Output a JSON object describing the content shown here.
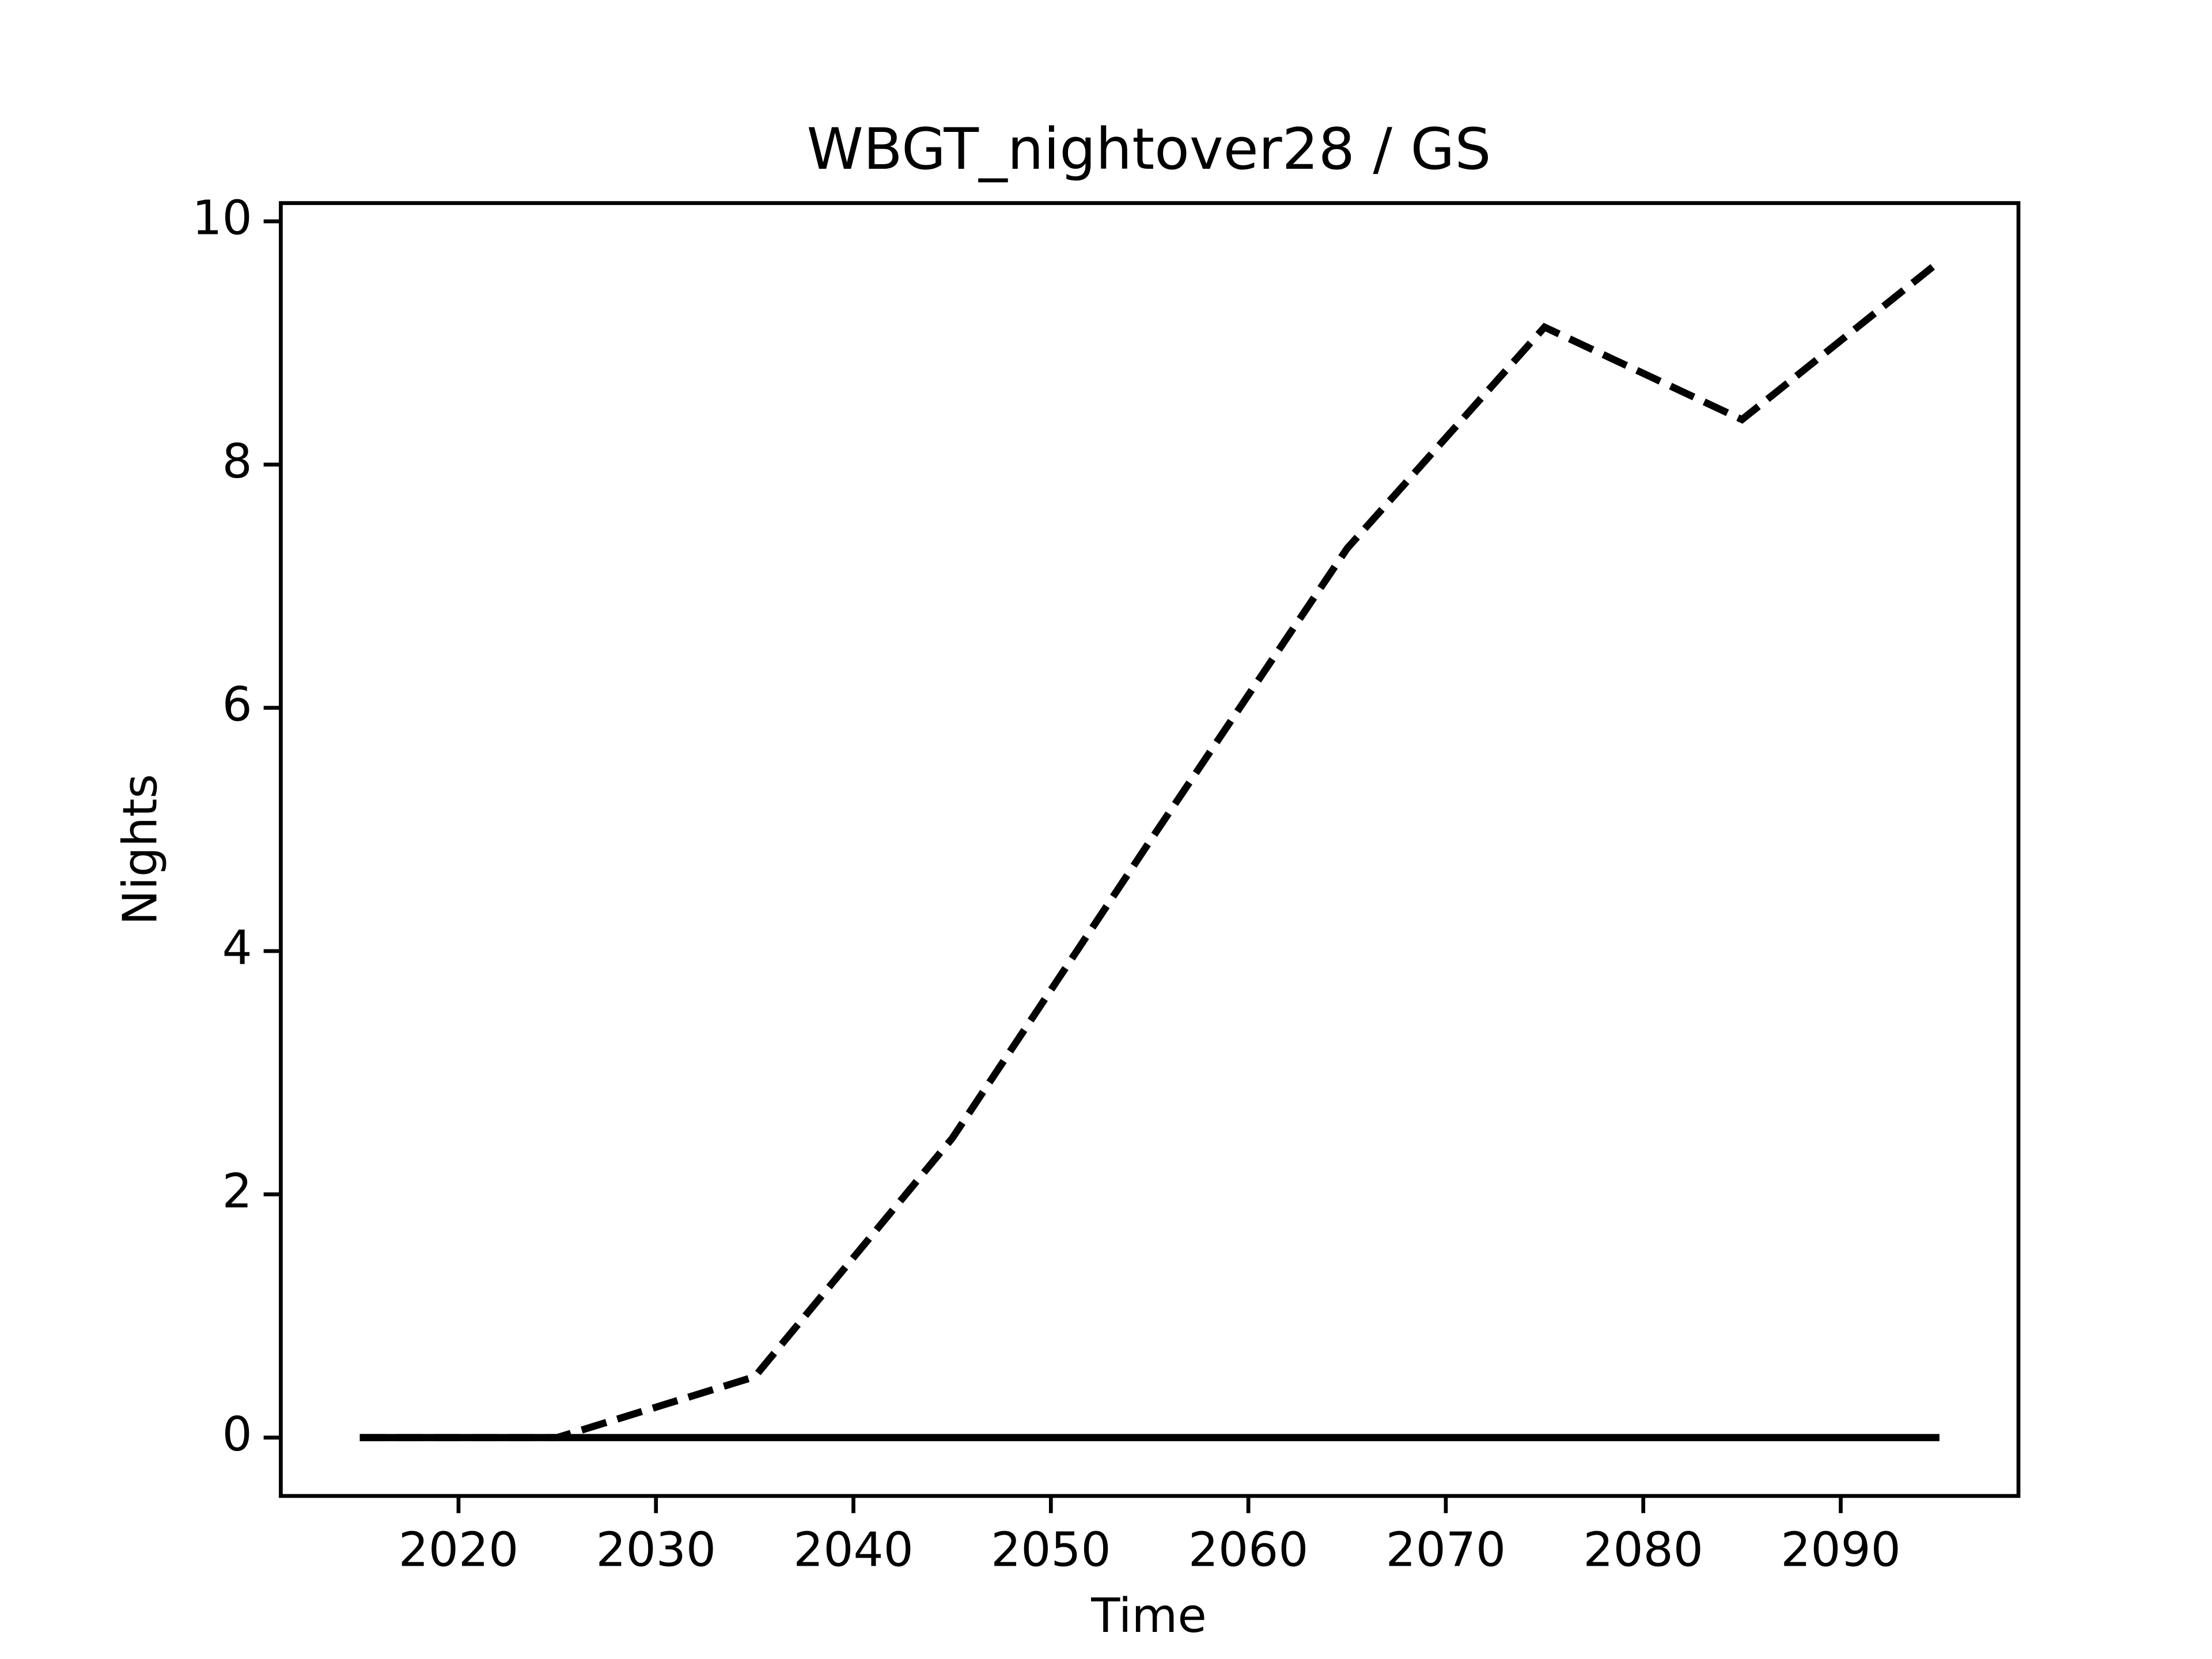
{
  "chart_data": {
    "type": "line",
    "title": "WBGT_nightover28 / GS",
    "x_label": "Time",
    "y_label": "Nights",
    "x": [
      2015,
      2025,
      2035,
      2045,
      2055,
      2065,
      2075,
      2085,
      2095
    ],
    "series": [
      {
        "color": "#000000",
        "dash": "dashed",
        "values": [
          0,
          0,
          0.5,
          2.46,
          4.9,
          7.31,
          9.13,
          8.37,
          9.67
        ]
      },
      {
        "color": "#000000",
        "dash": "solid",
        "values": [
          0,
          0,
          0,
          0,
          0,
          0,
          0,
          0,
          0
        ]
      }
    ],
    "xlim": [
      2011,
      2099
    ],
    "xticks": [
      2020,
      2030,
      2040,
      2050,
      2060,
      2070,
      2080,
      2090
    ],
    "ylim": [
      -0.48,
      10.15
    ],
    "yticks": [
      0,
      2,
      4,
      6,
      8,
      10
    ],
    "grid": false
  }
}
